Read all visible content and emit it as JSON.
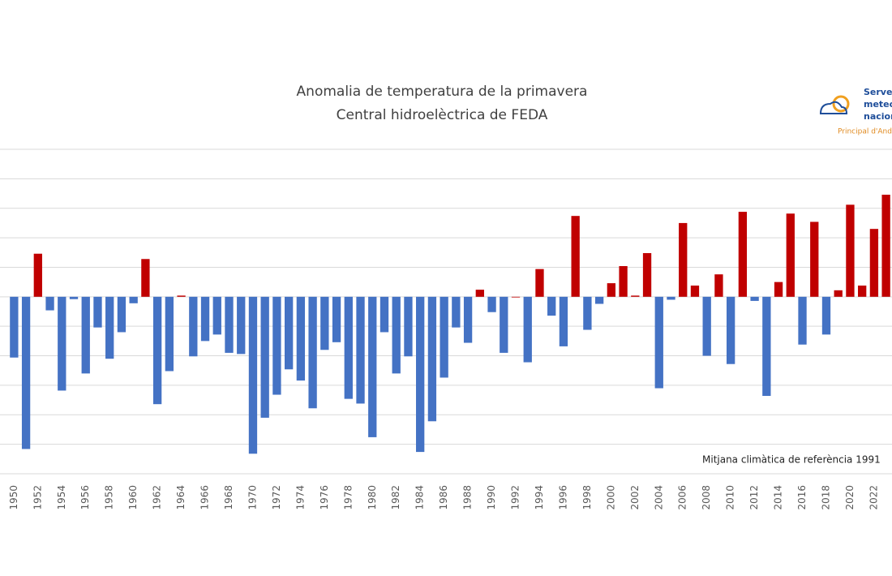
{
  "chart_data": {
    "type": "bar",
    "title": "Anomalia de temperatura de la primavera",
    "subtitle": "Central hidroelèctrica de FEDA",
    "annotation": "Mitjana climàtica de referència 1991",
    "logo": {
      "line1": "Servei",
      "line2": "meteo",
      "line3": "nacion",
      "line4": "Principal d'Ando"
    },
    "categories": [
      "1950",
      null,
      "1952",
      null,
      "1954",
      null,
      "1956",
      null,
      "1958",
      null,
      "1960",
      null,
      "1962",
      null,
      "1964",
      null,
      "1966",
      null,
      "1968",
      null,
      "1970",
      null,
      "1972",
      null,
      "1974",
      null,
      "1976",
      null,
      "1978",
      null,
      "1980",
      null,
      "1982",
      null,
      "1984",
      null,
      "1986",
      null,
      "1988",
      null,
      "1990",
      null,
      "1992",
      null,
      "1994",
      null,
      "1996",
      null,
      "1998",
      null,
      "2000",
      null,
      "2002",
      null,
      "2004",
      null,
      "2006",
      null,
      "2008",
      null,
      "2010",
      null,
      "2012",
      null,
      "2014",
      null,
      "2016",
      null,
      "2018",
      null,
      "2020",
      null,
      "2022",
      null
    ],
    "values": [
      -1.03,
      -2.58,
      0.73,
      -0.23,
      -1.59,
      -0.04,
      -1.3,
      -0.52,
      -1.05,
      -0.6,
      -0.11,
      0.64,
      -1.82,
      -1.26,
      0.02,
      -1.01,
      -0.75,
      -0.64,
      -0.95,
      -0.97,
      -2.66,
      -2.05,
      -1.66,
      -1.23,
      -1.42,
      -1.89,
      -0.9,
      -0.77,
      -1.73,
      -1.81,
      -2.38,
      -0.6,
      -1.3,
      -1.01,
      -2.63,
      -2.11,
      -1.37,
      -0.52,
      -0.78,
      0.12,
      -0.26,
      -0.95,
      0,
      -1.11,
      0.47,
      -0.32,
      -0.84,
      1.37,
      -0.56,
      -0.12,
      0.23,
      0.52,
      0.02,
      0.74,
      -1.55,
      -0.05,
      1.25,
      0.19,
      -1.0,
      0.38,
      -1.14,
      1.44,
      -0.07,
      -1.68,
      0.25,
      1.41,
      -0.81,
      1.27,
      -0.64,
      0.11,
      1.56,
      0.19,
      1.15,
      1.73
    ],
    "color_positive": "#c00000",
    "color_negative": "#4472c4",
    "ylim": [
      -3,
      2.5
    ],
    "yticks": [
      -3,
      -2.5,
      -2,
      -1.5,
      -1,
      -0.5,
      0,
      0.5,
      1,
      1.5,
      2,
      2.5
    ],
    "grid": true
  }
}
